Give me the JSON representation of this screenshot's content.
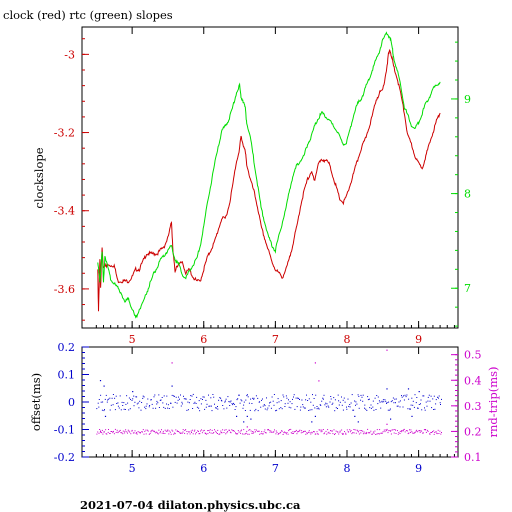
{
  "title": "clock (red) rtc (green) slopes",
  "footer": "2021-07-04 dilaton.physics.ubc.ca",
  "colors": {
    "red": "#cc0000",
    "green": "#00dd00",
    "blue": "#0000cc",
    "magenta": "#cc00cc",
    "axis": "#000000"
  },
  "chart_data": [
    {
      "type": "line",
      "panel": "top",
      "ylabel": "clockslope",
      "xlim": [
        4.3,
        9.55
      ],
      "ylim": [
        -3.7,
        -2.93
      ],
      "y2lim": [
        6.58,
        9.76
      ],
      "x_ticks": [
        "5",
        "6",
        "7",
        "8",
        "9"
      ],
      "y_ticks": [
        "-3",
        "-3.2",
        "-3.4",
        "-3.6"
      ],
      "y2_ticks": [
        "7",
        "8",
        "9"
      ],
      "grid": false,
      "series": [
        {
          "name": "clock",
          "color": "red",
          "axis": "left",
          "x": [
            4.52,
            4.53,
            4.55,
            4.56,
            4.58,
            4.6,
            4.62,
            4.64,
            4.66,
            4.7,
            4.75,
            4.8,
            4.85,
            4.9,
            4.95,
            5.0,
            5.05,
            5.1,
            5.15,
            5.2,
            5.25,
            5.3,
            5.35,
            5.4,
            5.45,
            5.5,
            5.55,
            5.57,
            5.6,
            5.62,
            5.65,
            5.7,
            5.75,
            5.8,
            5.85,
            5.9,
            5.95,
            6.0,
            6.05,
            6.1,
            6.15,
            6.2,
            6.25,
            6.3,
            6.35,
            6.4,
            6.45,
            6.5,
            6.52,
            6.55,
            6.58,
            6.6,
            6.65,
            6.7,
            6.75,
            6.8,
            6.85,
            6.9,
            6.95,
            7.0,
            7.05,
            7.1,
            7.15,
            7.2,
            7.25,
            7.3,
            7.35,
            7.4,
            7.45,
            7.5,
            7.52,
            7.55,
            7.6,
            7.65,
            7.7,
            7.75,
            7.8,
            7.85,
            7.9,
            7.95,
            8.0,
            8.05,
            8.1,
            8.15,
            8.2,
            8.25,
            8.3,
            8.35,
            8.4,
            8.45,
            8.5,
            8.55,
            8.58,
            8.6,
            8.63,
            8.65,
            8.7,
            8.75,
            8.8,
            8.85,
            8.9,
            8.95,
            9.0,
            9.05,
            9.1,
            9.15,
            9.2,
            9.25,
            9.3
          ],
          "values": [
            -3.55,
            -3.66,
            -3.52,
            -3.6,
            -3.49,
            -3.55,
            -3.54,
            -3.54,
            -3.54,
            -3.54,
            -3.54,
            -3.58,
            -3.58,
            -3.58,
            -3.58,
            -3.57,
            -3.55,
            -3.55,
            -3.53,
            -3.51,
            -3.51,
            -3.51,
            -3.51,
            -3.5,
            -3.49,
            -3.47,
            -3.43,
            -3.5,
            -3.56,
            -3.54,
            -3.54,
            -3.53,
            -3.56,
            -3.55,
            -3.57,
            -3.58,
            -3.58,
            -3.55,
            -3.52,
            -3.5,
            -3.48,
            -3.45,
            -3.42,
            -3.42,
            -3.39,
            -3.34,
            -3.28,
            -3.24,
            -3.21,
            -3.23,
            -3.25,
            -3.28,
            -3.32,
            -3.35,
            -3.39,
            -3.44,
            -3.47,
            -3.5,
            -3.53,
            -3.55,
            -3.56,
            -3.57,
            -3.55,
            -3.52,
            -3.48,
            -3.44,
            -3.39,
            -3.35,
            -3.32,
            -3.3,
            -3.31,
            -3.32,
            -3.28,
            -3.27,
            -3.27,
            -3.28,
            -3.31,
            -3.34,
            -3.37,
            -3.38,
            -3.36,
            -3.33,
            -3.3,
            -3.27,
            -3.24,
            -3.22,
            -3.19,
            -3.16,
            -3.12,
            -3.1,
            -3.09,
            -3.04,
            -3.0,
            -2.99,
            -3.01,
            -3.03,
            -3.06,
            -3.1,
            -3.15,
            -3.21,
            -3.23,
            -3.26,
            -3.28,
            -3.29,
            -3.26,
            -3.23,
            -3.2,
            -3.17,
            -3.15
          ]
        },
        {
          "name": "rtc",
          "color": "green",
          "axis": "right",
          "x": [
            4.52,
            4.55,
            4.58,
            4.6,
            4.62,
            4.65,
            4.7,
            4.75,
            4.8,
            4.85,
            4.9,
            4.95,
            5.0,
            5.05,
            5.1,
            5.15,
            5.2,
            5.25,
            5.3,
            5.35,
            5.4,
            5.45,
            5.5,
            5.55,
            5.6,
            5.65,
            5.7,
            5.75,
            5.8,
            5.85,
            5.9,
            5.95,
            6.0,
            6.05,
            6.1,
            6.15,
            6.2,
            6.25,
            6.3,
            6.35,
            6.4,
            6.45,
            6.5,
            6.52,
            6.55,
            6.58,
            6.6,
            6.65,
            6.7,
            6.75,
            6.8,
            6.85,
            6.9,
            6.95,
            7.0,
            7.05,
            7.1,
            7.15,
            7.2,
            7.25,
            7.3,
            7.35,
            7.4,
            7.45,
            7.5,
            7.55,
            7.6,
            7.65,
            7.7,
            7.75,
            7.8,
            7.85,
            7.9,
            7.95,
            8.0,
            8.05,
            8.1,
            8.15,
            8.2,
            8.25,
            8.3,
            8.35,
            8.4,
            8.45,
            8.5,
            8.55,
            8.6,
            8.63,
            8.65,
            8.7,
            8.75,
            8.8,
            8.85,
            8.9,
            8.95,
            9.0,
            9.05,
            9.1,
            9.15,
            9.2,
            9.25,
            9.3
          ],
          "values": [
            7.26,
            7.08,
            7.4,
            7.05,
            7.35,
            7.25,
            7.1,
            7.05,
            7.0,
            6.95,
            6.85,
            6.9,
            6.78,
            6.68,
            6.78,
            6.85,
            6.95,
            7.05,
            7.15,
            7.22,
            7.3,
            7.35,
            7.4,
            7.45,
            7.3,
            7.25,
            7.15,
            7.1,
            7.18,
            7.25,
            7.3,
            7.45,
            7.65,
            7.9,
            8.1,
            8.3,
            8.5,
            8.65,
            8.72,
            8.78,
            8.9,
            9.05,
            9.15,
            9.02,
            8.98,
            8.9,
            8.75,
            8.6,
            8.35,
            8.1,
            7.85,
            7.7,
            7.55,
            7.45,
            7.4,
            7.55,
            7.7,
            7.85,
            8.05,
            8.2,
            8.3,
            8.35,
            8.4,
            8.52,
            8.6,
            8.72,
            8.8,
            8.85,
            8.82,
            8.78,
            8.72,
            8.68,
            8.6,
            8.52,
            8.55,
            8.7,
            8.85,
            8.95,
            9.0,
            9.1,
            9.2,
            9.3,
            9.4,
            9.5,
            9.62,
            9.7,
            9.65,
            9.55,
            9.45,
            9.3,
            9.15,
            8.92,
            8.82,
            8.72,
            8.68,
            8.75,
            8.85,
            8.95,
            9.02,
            9.1,
            9.15,
            9.18
          ]
        }
      ]
    },
    {
      "type": "scatter",
      "panel": "bottom",
      "ylabel": "offset(ms)",
      "y2label": "rnd-trip(ms)",
      "xlim": [
        4.3,
        9.55
      ],
      "ylim": [
        -0.2,
        0.2
      ],
      "y2lim": [
        0.1,
        0.53
      ],
      "x_ticks": [
        "5",
        "6",
        "7",
        "8",
        "9"
      ],
      "y_ticks": [
        "0.2",
        "0.1",
        "0",
        "-0.1",
        "-0.2"
      ],
      "y2_ticks": [
        "0.5",
        "0.4",
        "0.3",
        "0.2",
        "0.1"
      ],
      "grid": false,
      "series": [
        {
          "name": "offset",
          "color": "blue",
          "axis": "left",
          "x_range": [
            4.5,
            9.32
          ],
          "center": 0.0,
          "spread": 0.03,
          "outliers": [
            [
              4.55,
              0.08
            ],
            [
              4.6,
              0.06
            ],
            [
              4.62,
              -0.05
            ],
            [
              5.0,
              0.04
            ],
            [
              5.55,
              0.06
            ],
            [
              6.45,
              -0.05
            ],
            [
              6.55,
              -0.07
            ],
            [
              6.6,
              -0.05
            ],
            [
              6.65,
              -0.06
            ],
            [
              7.5,
              -0.07
            ],
            [
              7.55,
              -0.05
            ],
            [
              8.1,
              -0.05
            ],
            [
              8.15,
              -0.07
            ],
            [
              8.55,
              0.05
            ],
            [
              8.6,
              -0.06
            ],
            [
              8.85,
              0.05
            ],
            [
              8.9,
              -0.05
            ],
            [
              9.0,
              0.04
            ]
          ]
        },
        {
          "name": "rnd-trip",
          "color": "magenta",
          "axis": "right",
          "x_range": [
            4.5,
            9.32
          ],
          "center": 0.2,
          "spread": 0.01,
          "outliers": [
            [
              4.55,
              0.2
            ],
            [
              5.55,
              0.47
            ],
            [
              7.55,
              0.47
            ],
            [
              7.6,
              0.4
            ],
            [
              8.55,
              0.52
            ],
            [
              6.6,
              0.22
            ],
            [
              8.55,
              0.23
            ]
          ]
        }
      ]
    }
  ]
}
